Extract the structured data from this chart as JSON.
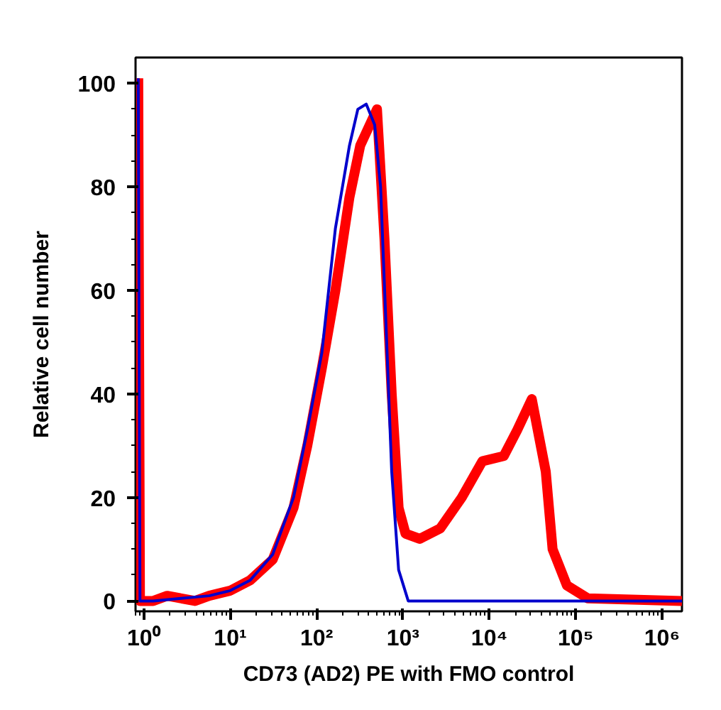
{
  "chart_data": {
    "type": "line",
    "xlabel": "CD73 (AD2) PE with FMO control",
    "ylabel": "Relative cell number",
    "log": "x",
    "grid": false,
    "marker": "none",
    "line_style": "solid",
    "xlim": [
      0.8,
      1700000
    ],
    "ylim": [
      -2,
      105
    ],
    "xticks": [
      {
        "value": 1,
        "label": "10⁰"
      },
      {
        "value": 10,
        "label": "10¹"
      },
      {
        "value": 100,
        "label": "10²"
      },
      {
        "value": 1000,
        "label": "10³"
      },
      {
        "value": 10000,
        "label": "10⁴"
      },
      {
        "value": 100000,
        "label": "10⁵"
      },
      {
        "value": 1000000,
        "label": "10⁶"
      }
    ],
    "yticks": [
      0,
      20,
      40,
      60,
      80,
      100
    ],
    "series": [
      {
        "color": "#ff0000",
        "x": [
          0.86,
          0.9,
          1.28,
          1.86,
          3.9,
          5.7,
          10,
          17,
          31,
          54,
          78,
          115,
          165,
          240,
          320,
          500,
          610,
          740,
          890,
          1070,
          1560,
          2700,
          4800,
          8300,
          14700,
          21000,
          31000,
          45000,
          54000,
          79000,
          138000,
          1700000
        ],
        "values": [
          101,
          0,
          0,
          1,
          0,
          1,
          2,
          4,
          8,
          18,
          30,
          45,
          60,
          78,
          88,
          95,
          70,
          40,
          18,
          13,
          12,
          14,
          20,
          27,
          28,
          33,
          39,
          25,
          10,
          3,
          0.5,
          0
        ]
      },
      {
        "color": "#0000cc",
        "x": [
          0.86,
          0.9,
          1.28,
          2.7,
          5.7,
          10,
          17,
          31,
          54,
          78,
          115,
          165,
          240,
          300,
          375,
          470,
          550,
          630,
          740,
          890,
          1150,
          1700000
        ],
        "values": [
          101,
          0,
          0,
          0.5,
          1,
          2,
          4,
          9,
          20,
          33,
          48,
          72,
          88,
          95,
          96,
          92,
          80,
          55,
          25,
          6,
          0,
          0
        ]
      }
    ]
  }
}
